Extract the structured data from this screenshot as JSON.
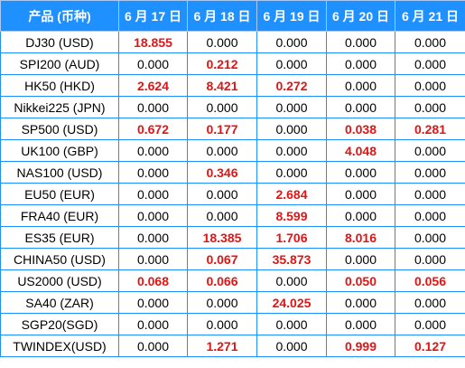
{
  "table": {
    "headers": [
      "产品 (币种)",
      "6 月 17 日",
      "6 月 18 日",
      "6 月 19 日",
      "6 月 20 日",
      "6 月 21 日"
    ],
    "rows": [
      {
        "product": "DJ30 (USD)",
        "values": [
          "18.855",
          "0.000",
          "0.000",
          "0.000",
          "0.000"
        ]
      },
      {
        "product": "SPI200 (AUD)",
        "values": [
          "0.000",
          "0.212",
          "0.000",
          "0.000",
          "0.000"
        ]
      },
      {
        "product": "HK50 (HKD)",
        "values": [
          "2.624",
          "8.421",
          "0.272",
          "0.000",
          "0.000"
        ]
      },
      {
        "product": "Nikkei225 (JPN)",
        "values": [
          "0.000",
          "0.000",
          "0.000",
          "0.000",
          "0.000"
        ]
      },
      {
        "product": "SP500 (USD)",
        "values": [
          "0.672",
          "0.177",
          "0.000",
          "0.038",
          "0.281"
        ]
      },
      {
        "product": "UK100 (GBP)",
        "values": [
          "0.000",
          "0.000",
          "0.000",
          "4.048",
          "0.000"
        ]
      },
      {
        "product": "NAS100 (USD)",
        "values": [
          "0.000",
          "0.346",
          "0.000",
          "0.000",
          "0.000"
        ]
      },
      {
        "product": "EU50 (EUR)",
        "values": [
          "0.000",
          "0.000",
          "2.684",
          "0.000",
          "0.000"
        ]
      },
      {
        "product": "FRA40 (EUR)",
        "values": [
          "0.000",
          "0.000",
          "8.599",
          "0.000",
          "0.000"
        ]
      },
      {
        "product": "ES35 (EUR)",
        "values": [
          "0.000",
          "18.385",
          "1.706",
          "8.016",
          "0.000"
        ]
      },
      {
        "product": "CHINA50 (USD)",
        "values": [
          "0.000",
          "0.067",
          "35.873",
          "0.000",
          "0.000"
        ]
      },
      {
        "product": "US2000 (USD)",
        "values": [
          "0.068",
          "0.066",
          "0.000",
          "0.050",
          "0.056"
        ]
      },
      {
        "product": "SA40 (ZAR)",
        "values": [
          "0.000",
          "0.000",
          "24.025",
          "0.000",
          "0.000"
        ]
      },
      {
        "product": "SGP20(SGD)",
        "values": [
          "0.000",
          "0.000",
          "0.000",
          "0.000",
          "0.000"
        ]
      },
      {
        "product": "TWINDEX(USD)",
        "values": [
          "0.000",
          "1.271",
          "0.000",
          "0.999",
          "0.127"
        ]
      }
    ]
  },
  "colors": {
    "header_bg": "#1e90ff",
    "header_text": "#ffffff",
    "grid": "#1e90ff",
    "nonzero_value": "#e01515",
    "zero_value": "#000000"
  }
}
